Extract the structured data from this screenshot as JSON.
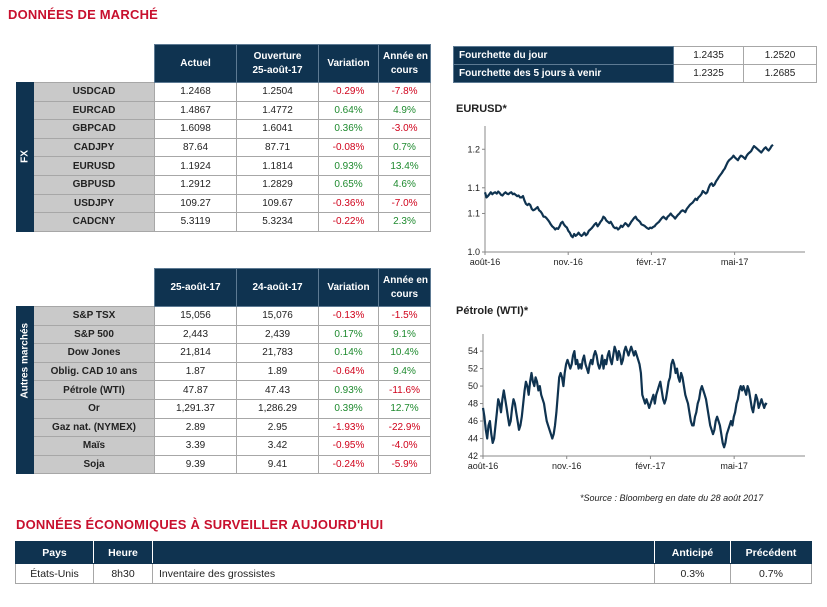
{
  "titles": {
    "market": "DONNÉES DE MARCHÉ",
    "economic": "DONNÉES ÉCONOMIQUES À SURVEILLER AUJOURD'HUI"
  },
  "fx": {
    "section_label": "FX",
    "headers": {
      "actual": "Actuel",
      "opening_1": "Ouverture",
      "opening_2": "25-août-17",
      "variation": "Variation",
      "ytd_1": "Année en",
      "ytd_2": "cours"
    },
    "rows": [
      {
        "pair": "USDCAD",
        "actual": "1.2468",
        "opening": "1.2504",
        "variation": "-0.29%",
        "ytd": "-7.8%"
      },
      {
        "pair": "EURCAD",
        "actual": "1.4867",
        "opening": "1.4772",
        "variation": "0.64%",
        "ytd": "4.9%"
      },
      {
        "pair": "GBPCAD",
        "actual": "1.6098",
        "opening": "1.6041",
        "variation": "0.36%",
        "ytd": "-3.0%"
      },
      {
        "pair": "CADJPY",
        "actual": "87.64",
        "opening": "87.71",
        "variation": "-0.08%",
        "ytd": "0.7%"
      },
      {
        "pair": "EURUSD",
        "actual": "1.1924",
        "opening": "1.1814",
        "variation": "0.93%",
        "ytd": "13.4%"
      },
      {
        "pair": "GBPUSD",
        "actual": "1.2912",
        "opening": "1.2829",
        "variation": "0.65%",
        "ytd": "4.6%"
      },
      {
        "pair": "USDJPY",
        "actual": "109.27",
        "opening": "109.67",
        "variation": "-0.36%",
        "ytd": "-7.0%"
      },
      {
        "pair": "CADCNY",
        "actual": "5.3119",
        "opening": "5.3234",
        "variation": "-0.22%",
        "ytd": "2.3%"
      }
    ]
  },
  "other": {
    "section_label": "Autres marchés",
    "headers": {
      "d1": "25-août-17",
      "d2": "24-août-17",
      "variation": "Variation",
      "ytd_1": "Année en",
      "ytd_2": "cours"
    },
    "rows": [
      {
        "name": "S&P TSX",
        "d1": "15,056",
        "d2": "15,076",
        "variation": "-0.13%",
        "ytd": "-1.5%"
      },
      {
        "name": "S&P 500",
        "d1": "2,443",
        "d2": "2,439",
        "variation": "0.17%",
        "ytd": "9.1%"
      },
      {
        "name": "Dow Jones",
        "d1": "21,814",
        "d2": "21,783",
        "variation": "0.14%",
        "ytd": "10.4%"
      },
      {
        "name": "Oblig. CAD 10 ans",
        "d1": "1.87",
        "d2": "1.89",
        "variation": "-0.64%",
        "ytd": "9.4%"
      },
      {
        "name": "Pétrole (WTI)",
        "d1": "47.87",
        "d2": "47.43",
        "variation": "0.93%",
        "ytd": "-11.6%"
      },
      {
        "name": "Or",
        "d1": "1,291.37",
        "d2": "1,286.29",
        "variation": "0.39%",
        "ytd": "12.7%"
      },
      {
        "name": "Gaz nat. (NYMEX)",
        "d1": "2.89",
        "d2": "2.95",
        "variation": "-1.93%",
        "ytd": "-22.9%"
      },
      {
        "name": "Maïs",
        "d1": "3.39",
        "d2": "3.42",
        "variation": "-0.95%",
        "ytd": "-4.0%"
      },
      {
        "name": "Soja",
        "d1": "9.39",
        "d2": "9.41",
        "variation": "-0.24%",
        "ytd": "-5.9%"
      }
    ]
  },
  "ranges": [
    {
      "label": "Fourchette du jour",
      "low": "1.2435",
      "high": "1.2520"
    },
    {
      "label": "Fourchette des 5 jours à venir",
      "low": "1.2325",
      "high": "1.2685"
    }
  ],
  "source_note": "*Source : Bloomberg en date du  28 août 2017",
  "colors": {
    "navy": "#0f3350",
    "red_title": "#c8102e",
    "label_grey": "#c9c9c9",
    "positive": "#1e8a2e",
    "negative": "#d0021b",
    "line": "#0f3350"
  },
  "chart_data": [
    {
      "type": "line",
      "title": "EURUSD*",
      "x_tick_labels": [
        "août-16",
        "nov.-16",
        "févr.-17",
        "mai-17"
      ],
      "y_tick_labels": [
        "1.0",
        "1.1",
        "1.1",
        "1.2"
      ],
      "ylim": [
        1.025,
        1.215
      ],
      "grid": false,
      "series": [
        {
          "values": [
            1.118,
            1.11,
            1.112,
            1.115,
            1.118,
            1.115,
            1.117,
            1.118,
            1.116,
            1.119,
            1.117,
            1.114,
            1.113,
            1.116,
            1.118,
            1.116,
            1.115,
            1.117,
            1.118,
            1.115,
            1.116,
            1.114,
            1.112,
            1.113,
            1.11,
            1.11,
            1.112,
            1.105,
            1.1,
            1.098,
            1.1,
            1.098,
            1.092,
            1.09,
            1.091,
            1.093,
            1.095,
            1.09,
            1.088,
            1.085,
            1.08,
            1.08,
            1.078,
            1.075,
            1.072,
            1.068,
            1.065,
            1.063,
            1.06,
            1.062,
            1.061,
            1.065,
            1.07,
            1.072,
            1.068,
            1.065,
            1.063,
            1.058,
            1.055,
            1.05,
            1.048,
            1.053,
            1.05,
            1.052,
            1.055,
            1.052,
            1.05,
            1.052,
            1.055,
            1.051,
            1.053,
            1.058,
            1.06,
            1.062,
            1.065,
            1.068,
            1.07,
            1.065,
            1.068,
            1.072,
            1.075,
            1.08,
            1.078,
            1.074,
            1.072,
            1.07,
            1.072,
            1.068,
            1.064,
            1.062,
            1.063,
            1.06,
            1.062,
            1.066,
            1.064,
            1.067,
            1.07,
            1.068,
            1.065,
            1.068,
            1.072,
            1.075,
            1.078,
            1.08,
            1.076,
            1.074,
            1.072,
            1.068,
            1.067,
            1.066,
            1.064,
            1.062,
            1.061,
            1.063,
            1.062,
            1.064,
            1.065,
            1.068,
            1.07,
            1.072,
            1.075,
            1.078,
            1.08,
            1.078,
            1.076,
            1.08,
            1.082,
            1.085,
            1.082,
            1.08,
            1.077,
            1.08,
            1.083,
            1.085,
            1.088,
            1.09,
            1.089,
            1.087,
            1.092,
            1.095,
            1.098,
            1.1,
            1.102,
            1.105,
            1.108,
            1.106,
            1.11,
            1.112,
            1.115,
            1.12,
            1.118,
            1.116,
            1.118,
            1.125,
            1.13,
            1.132,
            1.128,
            1.13,
            1.135,
            1.138,
            1.142,
            1.145,
            1.148,
            1.152,
            1.155,
            1.16,
            1.165,
            1.168,
            1.17,
            1.172,
            1.175,
            1.172,
            1.17,
            1.168,
            1.172,
            1.175,
            1.174,
            1.172,
            1.17,
            1.175,
            1.178,
            1.18,
            1.182,
            1.186,
            1.19,
            1.188,
            1.186,
            1.184,
            1.182,
            1.18,
            1.183,
            1.186,
            1.188,
            1.185,
            1.183,
            1.186,
            1.19,
            1.192
          ]
        }
      ]
    },
    {
      "type": "line",
      "title": "Pétrole (WTI)*",
      "x_tick_labels": [
        "août-16",
        "nov.-16",
        "févr.-17",
        "mai-17"
      ],
      "y_tick_labels": [
        "42",
        "44",
        "46",
        "48",
        "50",
        "52",
        "54"
      ],
      "ylim": [
        42,
        55.5
      ],
      "grid": false,
      "series": [
        {
          "values": [
            47.5,
            46.5,
            45.0,
            44.0,
            45.5,
            46.0,
            44.5,
            43.5,
            44.0,
            45.5,
            47.0,
            48.5,
            48.0,
            47.0,
            48.5,
            49.5,
            48.5,
            47.5,
            46.5,
            45.5,
            46.0,
            47.5,
            48.5,
            48.0,
            47.0,
            46.0,
            45.0,
            45.5,
            46.5,
            48.0,
            49.5,
            50.5,
            50.0,
            49.0,
            50.5,
            51.5,
            50.5,
            50.0,
            51.0,
            50.5,
            49.5,
            50.0,
            49.0,
            48.5,
            48.0,
            47.0,
            46.0,
            45.5,
            45.0,
            44.5,
            44.0,
            44.5,
            45.5,
            47.0,
            49.0,
            51.0,
            51.5,
            51.0,
            50.0,
            51.5,
            52.5,
            53.0,
            52.5,
            52.0,
            52.5,
            53.5,
            54.0,
            52.5,
            53.0,
            52.0,
            52.5,
            52.0,
            53.0,
            53.5,
            52.5,
            52.0,
            51.5,
            52.5,
            53.0,
            52.5,
            53.5,
            54.0,
            53.5,
            52.5,
            52.0,
            52.5,
            53.5,
            52.0,
            53.0,
            52.5,
            53.5,
            54.0,
            53.0,
            52.5,
            53.5,
            54.5,
            54.0,
            53.0,
            54.0,
            53.5,
            52.5,
            53.0,
            54.0,
            54.5,
            54.0,
            53.5,
            54.0,
            54.5,
            54.0,
            53.5,
            54.0,
            53.5,
            53.0,
            52.5,
            51.5,
            49.0,
            48.5,
            48.0,
            48.5,
            48.0,
            47.5,
            48.0,
            48.5,
            49.0,
            48.0,
            49.0,
            49.5,
            50.0,
            50.5,
            49.5,
            48.5,
            48.0,
            48.5,
            49.5,
            50.5,
            51.0,
            52.5,
            53.0,
            52.5,
            51.5,
            52.0,
            51.0,
            50.5,
            51.5,
            51.0,
            50.0,
            49.0,
            48.5,
            48.0,
            47.0,
            46.0,
            45.5,
            45.5,
            46.5,
            47.0,
            48.0,
            48.5,
            49.5,
            50.0,
            49.5,
            49.0,
            48.5,
            47.5,
            46.5,
            45.5,
            45.0,
            44.5,
            45.0,
            46.0,
            46.5,
            46.0,
            45.5,
            44.5,
            43.5,
            43.0,
            43.5,
            44.5,
            45.0,
            45.5,
            46.0,
            45.5,
            46.5,
            47.0,
            48.0,
            48.5,
            49.5,
            50.0,
            49.5,
            50.0,
            49.5,
            49.0,
            50.0,
            49.5,
            48.5,
            47.5,
            47.0,
            48.0,
            49.0,
            48.5,
            47.5,
            48.0,
            48.5,
            48.0,
            47.5,
            48.0,
            47.9
          ]
        }
      ]
    }
  ],
  "economic": {
    "headers": {
      "country": "Pays",
      "time": "Heure",
      "desc": "",
      "expected": "Anticipé",
      "previous": "Précédent"
    },
    "rows": [
      {
        "country": "États-Unis",
        "time": "8h30",
        "desc": "Inventaire des grossistes",
        "expected": "0.3%",
        "previous": "0.7%"
      }
    ]
  }
}
